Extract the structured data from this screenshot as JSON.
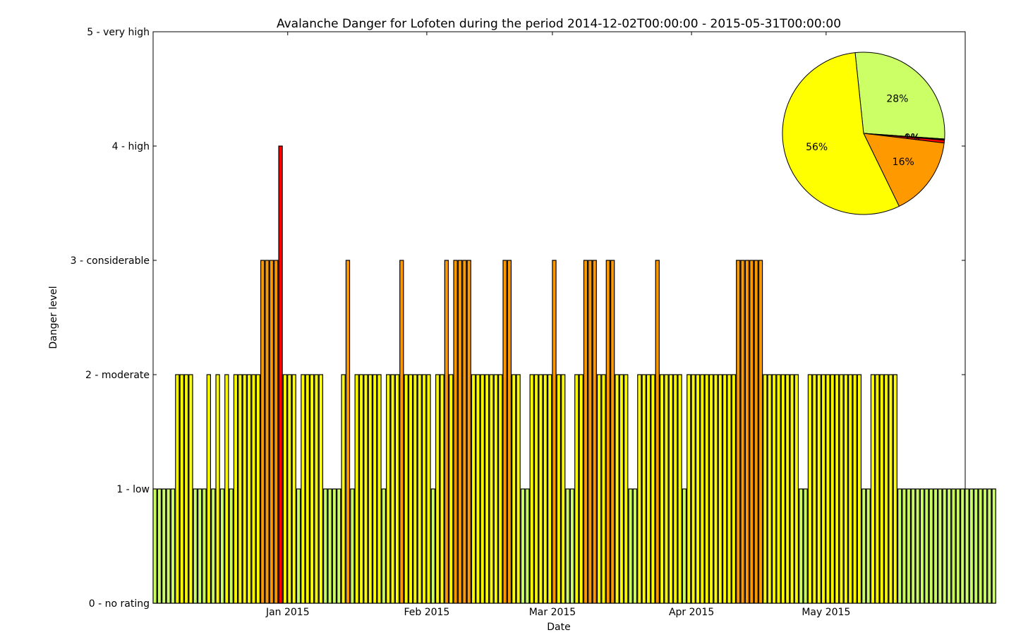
{
  "chart_data": [
    {
      "type": "bar",
      "title": "Avalanche Danger for Lofoten during the period 2014-12-02T00:00:00 - 2015-05-31T00:00:00",
      "xlabel": "Date",
      "ylabel": "Danger level",
      "start_date": "2014-12-02",
      "end_date": "2015-05-31",
      "ylim": [
        0,
        5
      ],
      "yticks": [
        {
          "value": 0,
          "label": "0 - no rating"
        },
        {
          "value": 1,
          "label": "1 - low"
        },
        {
          "value": 2,
          "label": "2 - moderate"
        },
        {
          "value": 3,
          "label": "3 - considerable"
        },
        {
          "value": 4,
          "label": "4 - high"
        },
        {
          "value": 5,
          "label": "5 - very high"
        }
      ],
      "xticks": [
        {
          "date": "2015-01-01",
          "label": "Jan 2015"
        },
        {
          "date": "2015-02-01",
          "label": "Feb 2015"
        },
        {
          "date": "2015-03-01",
          "label": "Mar 2015"
        },
        {
          "date": "2015-04-01",
          "label": "Apr 2015"
        },
        {
          "date": "2015-05-01",
          "label": "May 2015"
        }
      ],
      "level_colors": {
        "1": "#ccff66",
        "2": "#ffff00",
        "3": "#ff9900",
        "4": "#ff0000",
        "5": "#000000"
      },
      "values": [
        1,
        1,
        1,
        1,
        1,
        2,
        2,
        2,
        2,
        1,
        1,
        1,
        2,
        1,
        2,
        1,
        2,
        1,
        2,
        2,
        2,
        2,
        2,
        2,
        3,
        3,
        3,
        3,
        4,
        2,
        2,
        2,
        1,
        2,
        2,
        2,
        2,
        2,
        1,
        1,
        1,
        1,
        2,
        3,
        1,
        2,
        2,
        2,
        2,
        2,
        2,
        1,
        2,
        2,
        2,
        3,
        2,
        2,
        2,
        2,
        2,
        2,
        1,
        2,
        2,
        3,
        2,
        3,
        3,
        3,
        3,
        2,
        2,
        2,
        2,
        2,
        2,
        2,
        3,
        3,
        2,
        2,
        1,
        1,
        2,
        2,
        2,
        2,
        2,
        3,
        2,
        2,
        1,
        1,
        2,
        2,
        3,
        3,
        3,
        2,
        2,
        3,
        3,
        2,
        2,
        2,
        1,
        1,
        2,
        2,
        2,
        2,
        3,
        2,
        2,
        2,
        2,
        2,
        1,
        2,
        2,
        2,
        2,
        2,
        2,
        2,
        2,
        2,
        2,
        2,
        3,
        3,
        3,
        3,
        3,
        3,
        2,
        2,
        2,
        2,
        2,
        2,
        2,
        2,
        1,
        1,
        2,
        2,
        2,
        2,
        2,
        2,
        2,
        2,
        2,
        2,
        2,
        2,
        1,
        1,
        2,
        2,
        2,
        2,
        2,
        2,
        1,
        1,
        1,
        1,
        1,
        1,
        1,
        1,
        1,
        1,
        1,
        1,
        1,
        1,
        1,
        1,
        1,
        1,
        1,
        1,
        1,
        1
      ]
    },
    {
      "type": "pie",
      "slices": [
        {
          "label": "28%",
          "value": 28,
          "color": "#ccff66"
        },
        {
          "label": "0%",
          "value": 0.25,
          "color": "#000000"
        },
        {
          "label": "1%",
          "value": 0.55,
          "color": "#ff0000"
        },
        {
          "label": "16%",
          "value": 16,
          "color": "#ff9900"
        },
        {
          "label": "56%",
          "value": 56,
          "color": "#ffff00"
        }
      ]
    }
  ]
}
